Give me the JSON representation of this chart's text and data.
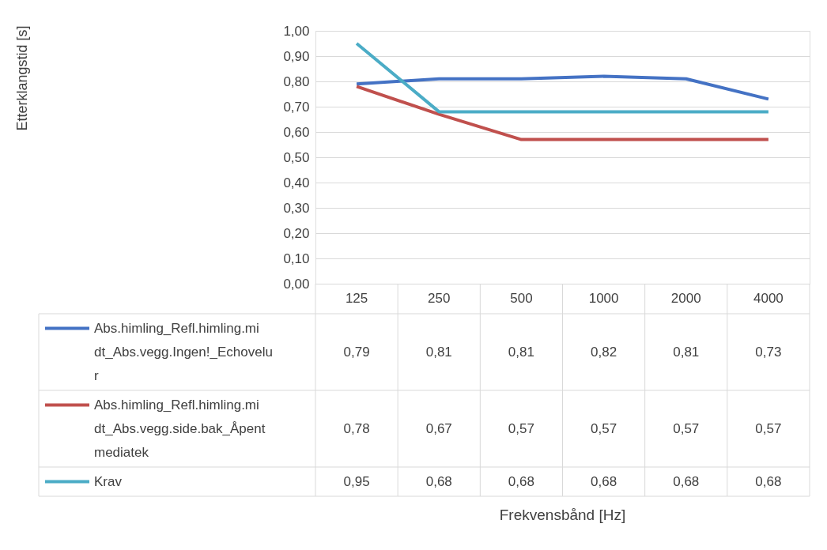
{
  "chart_data": {
    "type": "line",
    "annotations": [
      "Etterklangstid [s]",
      "Frekvensbånd [Hz]"
    ],
    "categories": [
      "125",
      "250",
      "500",
      "1000",
      "2000",
      "4000"
    ],
    "series": [
      {
        "name": "Abs.himling_Refl.himling.midt_Abs.vegg.Ingen!_Echovelur",
        "color": "#4472c4",
        "values": [
          0.79,
          0.81,
          0.81,
          0.82,
          0.81,
          0.73
        ],
        "value_labels": [
          "0,79",
          "0,81",
          "0,81",
          "0,82",
          "0,81",
          "0,73"
        ]
      },
      {
        "name": "Abs.himling_Refl.himling.midt_Abs.vegg.side.bak_Åpent mediatek",
        "color": "#c0504d",
        "values": [
          0.78,
          0.67,
          0.57,
          0.57,
          0.57,
          0.57
        ],
        "value_labels": [
          "0,78",
          "0,67",
          "0,57",
          "0,57",
          "0,57",
          "0,57"
        ]
      },
      {
        "name": "Krav",
        "color": "#4bacc6",
        "values": [
          0.95,
          0.68,
          0.68,
          0.68,
          0.68,
          0.68
        ],
        "value_labels": [
          "0,95",
          "0,68",
          "0,68",
          "0,68",
          "0,68",
          "0,68"
        ]
      }
    ],
    "ylim": [
      0,
      1
    ],
    "yticks": [
      {
        "value": 0,
        "label": "0,00"
      },
      {
        "value": 0.1,
        "label": "0,10"
      },
      {
        "value": 0.2,
        "label": "0,20"
      },
      {
        "value": 0.3,
        "label": "0,30"
      },
      {
        "value": 0.4,
        "label": "0,40"
      },
      {
        "value": 0.5,
        "label": "0,50"
      },
      {
        "value": 0.6,
        "label": "0,60"
      },
      {
        "value": 0.7,
        "label": "0,70"
      },
      {
        "value": 0.8,
        "label": "0,80"
      },
      {
        "value": 0.9,
        "label": "0,90"
      },
      {
        "value": 1.0,
        "label": "1,00"
      }
    ],
    "grid": "y",
    "legend": "bottom",
    "line_style": "solid",
    "marker": "none"
  }
}
